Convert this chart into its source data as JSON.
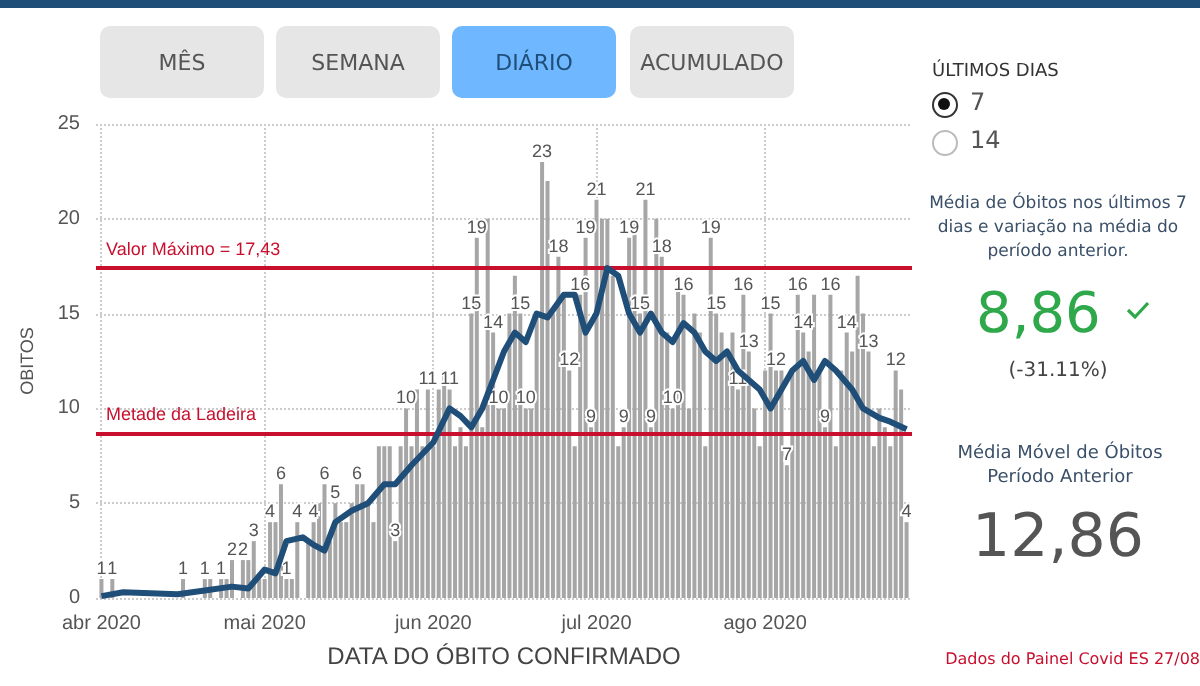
{
  "chart_data": {
    "type": "bar",
    "xlabel": "DATA DO ÓBITO CONFIRMADO",
    "ylabel": "OBITOS",
    "x": [
      "2020-04-01",
      "2020-04-02",
      "2020-04-03",
      "2020-04-04",
      "2020-04-05",
      "2020-04-06",
      "2020-04-07",
      "2020-04-08",
      "2020-04-09",
      "2020-04-10",
      "2020-04-11",
      "2020-04-12",
      "2020-04-13",
      "2020-04-14",
      "2020-04-15",
      "2020-04-16",
      "2020-04-17",
      "2020-04-18",
      "2020-04-19",
      "2020-04-20",
      "2020-04-21",
      "2020-04-22",
      "2020-04-23",
      "2020-04-24",
      "2020-04-25",
      "2020-04-26",
      "2020-04-27",
      "2020-04-28",
      "2020-04-29",
      "2020-04-30",
      "2020-05-01",
      "2020-05-02",
      "2020-05-03",
      "2020-05-04",
      "2020-05-05",
      "2020-05-06",
      "2020-05-07",
      "2020-05-08",
      "2020-05-09",
      "2020-05-10",
      "2020-05-11",
      "2020-05-12",
      "2020-05-13",
      "2020-05-14",
      "2020-05-15",
      "2020-05-16",
      "2020-05-17",
      "2020-05-18",
      "2020-05-19",
      "2020-05-20",
      "2020-05-21",
      "2020-05-22",
      "2020-05-23",
      "2020-05-24",
      "2020-05-25",
      "2020-05-26",
      "2020-05-27",
      "2020-05-28",
      "2020-05-29",
      "2020-05-30",
      "2020-05-31",
      "2020-06-01",
      "2020-06-02",
      "2020-06-03",
      "2020-06-04",
      "2020-06-05",
      "2020-06-06",
      "2020-06-07",
      "2020-06-08",
      "2020-06-09",
      "2020-06-10",
      "2020-06-11",
      "2020-06-12",
      "2020-06-13",
      "2020-06-14",
      "2020-06-15",
      "2020-06-16",
      "2020-06-17",
      "2020-06-18",
      "2020-06-19",
      "2020-06-20",
      "2020-06-21",
      "2020-06-22",
      "2020-06-23",
      "2020-06-24",
      "2020-06-25",
      "2020-06-26",
      "2020-06-27",
      "2020-06-28",
      "2020-06-29",
      "2020-06-30",
      "2020-07-01",
      "2020-07-02",
      "2020-07-03",
      "2020-07-04",
      "2020-07-05",
      "2020-07-06",
      "2020-07-07",
      "2020-07-08",
      "2020-07-09",
      "2020-07-10",
      "2020-07-11",
      "2020-07-12",
      "2020-07-13",
      "2020-07-14",
      "2020-07-15",
      "2020-07-16",
      "2020-07-17",
      "2020-07-18",
      "2020-07-19",
      "2020-07-20",
      "2020-07-21",
      "2020-07-22",
      "2020-07-23",
      "2020-07-24",
      "2020-07-25",
      "2020-07-26",
      "2020-07-27",
      "2020-07-28",
      "2020-07-29",
      "2020-07-30",
      "2020-07-31",
      "2020-08-01",
      "2020-08-02",
      "2020-08-03",
      "2020-08-04",
      "2020-08-05",
      "2020-08-06",
      "2020-08-07",
      "2020-08-08",
      "2020-08-09",
      "2020-08-10",
      "2020-08-11",
      "2020-08-12",
      "2020-08-13",
      "2020-08-14",
      "2020-08-15",
      "2020-08-16",
      "2020-08-17",
      "2020-08-18",
      "2020-08-19",
      "2020-08-20",
      "2020-08-21",
      "2020-08-22",
      "2020-08-23",
      "2020-08-24",
      "2020-08-25",
      "2020-08-26",
      "2020-08-27"
    ],
    "series": [
      {
        "color": "#a6a6a6",
        "values": [
          1,
          0,
          1,
          0,
          0,
          0,
          0,
          0,
          0,
          0,
          0,
          0,
          0,
          0,
          0,
          1,
          0,
          0,
          0,
          1,
          1,
          0,
          1,
          1,
          2,
          0,
          2,
          2,
          3,
          1,
          1,
          4,
          4,
          6,
          1,
          1,
          4,
          0,
          3,
          4,
          5,
          6,
          3,
          5,
          4,
          4,
          5,
          6,
          6,
          5,
          4,
          8,
          8,
          8,
          3,
          8,
          10,
          8,
          11,
          8,
          11,
          8,
          11,
          12,
          11,
          8,
          9,
          8,
          15,
          19,
          9,
          20,
          14,
          10,
          10,
          15,
          17,
          15,
          10,
          10,
          15,
          23,
          22,
          15,
          18,
          16,
          12,
          8,
          16,
          19,
          9,
          21,
          20,
          20,
          17,
          8,
          9,
          19,
          20,
          15,
          21,
          9,
          20,
          18,
          14,
          10,
          17,
          16,
          10,
          15,
          14,
          8,
          19,
          15,
          14,
          13,
          14,
          11,
          16,
          13,
          10,
          8,
          12,
          15,
          12,
          12,
          7,
          12,
          16,
          14,
          13,
          16,
          12,
          9,
          16,
          8,
          12,
          14,
          13,
          17,
          15,
          13,
          8,
          10,
          9,
          8,
          12,
          11,
          4
        ],
        "value_labels": [
          "1",
          null,
          "1",
          null,
          null,
          null,
          null,
          null,
          null,
          null,
          null,
          null,
          null,
          null,
          null,
          "1",
          null,
          null,
          null,
          "1",
          null,
          null,
          "1",
          null,
          "2",
          null,
          "2",
          null,
          "3",
          null,
          null,
          "4",
          null,
          "6",
          "1",
          null,
          "4",
          null,
          null,
          "4",
          null,
          "6",
          null,
          "5",
          null,
          null,
          null,
          "6",
          null,
          null,
          null,
          null,
          null,
          null,
          "3",
          null,
          "10",
          null,
          null,
          null,
          "11",
          null,
          null,
          null,
          "11",
          null,
          null,
          null,
          "15",
          "19",
          null,
          null,
          "14",
          "10",
          null,
          null,
          null,
          "15",
          "10",
          null,
          null,
          "23",
          null,
          null,
          "18",
          null,
          "12",
          null,
          "16",
          "19",
          "9",
          "21",
          null,
          null,
          null,
          null,
          "9",
          "19",
          null,
          "15",
          "21",
          "9",
          null,
          "18",
          null,
          "10",
          null,
          "16",
          null,
          null,
          null,
          null,
          "19",
          "15",
          null,
          null,
          null,
          "11",
          "16",
          "13",
          null,
          null,
          null,
          "15",
          "12",
          null,
          "7",
          null,
          "16",
          "14",
          null,
          null,
          null,
          "9",
          "16",
          null,
          null,
          "14",
          null,
          null,
          null,
          "13",
          null,
          null,
          null,
          null,
          "12",
          null,
          "4"
        ]
      },
      {
        "type": "line",
        "color": "#1f4e79",
        "x": [
          "2020-04-01",
          "2020-04-05",
          "2020-04-15",
          "2020-04-20",
          "2020-04-25",
          "2020-04-28",
          "2020-05-01",
          "2020-05-03",
          "2020-05-05",
          "2020-05-08",
          "2020-05-10",
          "2020-05-12",
          "2020-05-14",
          "2020-05-17",
          "2020-05-20",
          "2020-05-23",
          "2020-05-25",
          "2020-05-28",
          "2020-06-01",
          "2020-06-04",
          "2020-06-06",
          "2020-06-08",
          "2020-06-10",
          "2020-06-12",
          "2020-06-14",
          "2020-06-16",
          "2020-06-18",
          "2020-06-20",
          "2020-06-22",
          "2020-06-25",
          "2020-06-27",
          "2020-06-29",
          "2020-07-01",
          "2020-07-03",
          "2020-07-05",
          "2020-07-07",
          "2020-07-09",
          "2020-07-11",
          "2020-07-13",
          "2020-07-15",
          "2020-07-17",
          "2020-07-19",
          "2020-07-21",
          "2020-07-23",
          "2020-07-25",
          "2020-07-27",
          "2020-07-29",
          "2020-07-31",
          "2020-08-02",
          "2020-08-04",
          "2020-08-06",
          "2020-08-08",
          "2020-08-10",
          "2020-08-12",
          "2020-08-14",
          "2020-08-17",
          "2020-08-19",
          "2020-08-22",
          "2020-08-24",
          "2020-08-27"
        ],
        "values": [
          0.1,
          0.3,
          0.2,
          0.4,
          0.6,
          0.5,
          1.5,
          1.3,
          3,
          3.2,
          2.8,
          2.5,
          4,
          4.6,
          5,
          6,
          6,
          7,
          8.2,
          10,
          9.6,
          9,
          10,
          11.5,
          13,
          14,
          13.5,
          15,
          14.8,
          16,
          16,
          14,
          15,
          17.4,
          17,
          15,
          14,
          15,
          14,
          13.5,
          14.5,
          14,
          13,
          12.5,
          13,
          12,
          11.5,
          11,
          10,
          11,
          12,
          12.5,
          11.5,
          12.5,
          12,
          11,
          10,
          9.5,
          9.3,
          8.9
        ]
      }
    ],
    "xlim": [
      "2020-03-31",
      "2020-08-28"
    ],
    "xticks": [
      {
        "value": "2020-04-01",
        "label": "abr 2020"
      },
      {
        "value": "2020-05-01",
        "label": "mai 2020"
      },
      {
        "value": "2020-06-01",
        "label": "jun 2020"
      },
      {
        "value": "2020-07-01",
        "label": "jul 2020"
      },
      {
        "value": "2020-08-01",
        "label": "ago 2020"
      }
    ],
    "ylim": [
      0,
      25
    ],
    "yticks": [
      0,
      5,
      10,
      15,
      20,
      25
    ],
    "grid": true,
    "marker": "none",
    "ref_lines": [
      {
        "axis": "y",
        "value": 17.43,
        "label": "Valor Máximo = 17,43",
        "color": "#c8102e"
      },
      {
        "axis": "y",
        "value": 8.72,
        "label": "Metade da Ladeira",
        "color": "#c8102e"
      }
    ],
    "annotations": [
      "MÊS",
      "SEMANA",
      "DIÁRIO",
      "ACUMULADO",
      "ÚLTIMOS DIAS",
      "7",
      "14",
      "Média de Óbitos nos últimos 7 dias e variação na média do período anterior.",
      "8,86",
      "(-31.11%)",
      "Média Móvel de Óbitos Período Anterior",
      "12,86",
      "Dados do Painel Covid ES 27/08"
    ]
  }
}
